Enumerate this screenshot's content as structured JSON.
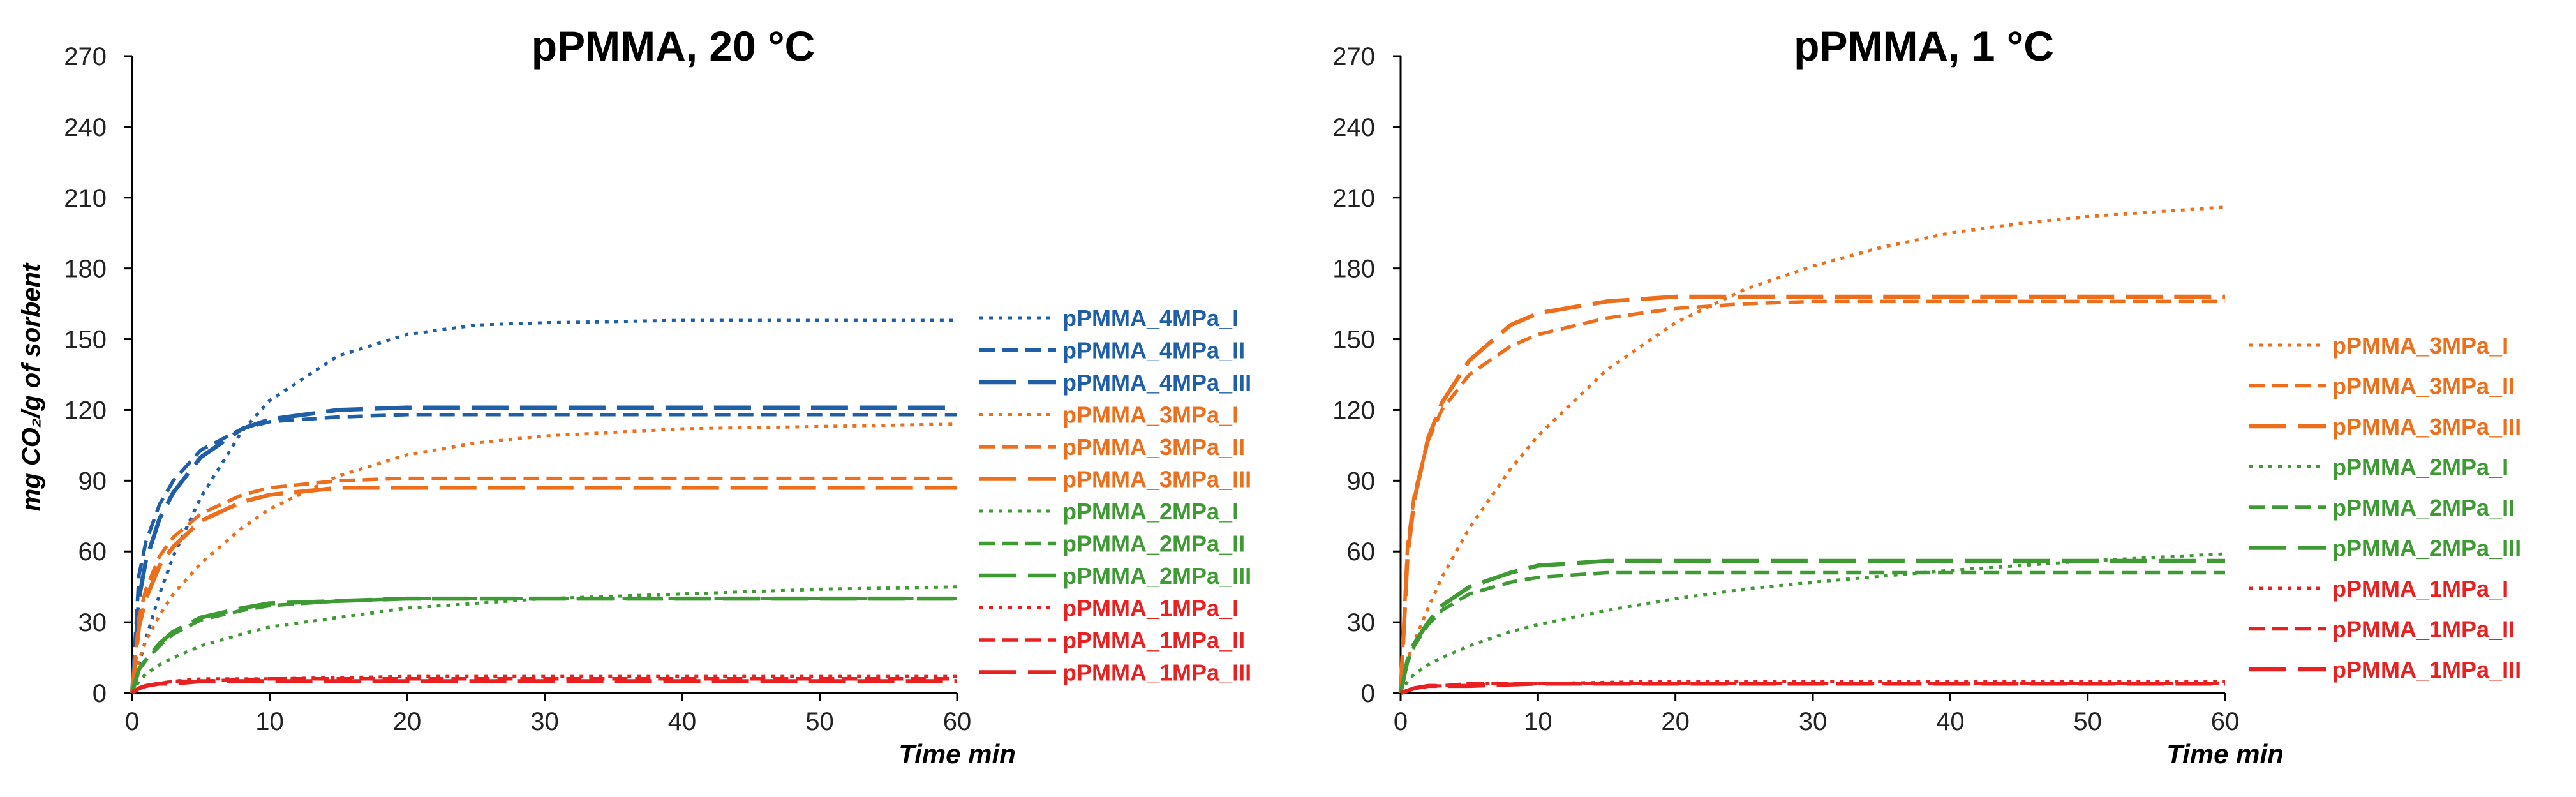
{
  "colors": {
    "4MPa": "#1f5fa8",
    "3MPa": "#ed6f1c",
    "2MPa": "#3e9a33",
    "1MPa": "#ea1f1f"
  },
  "chart_data": [
    {
      "type": "line",
      "title": "pPMMA, 20 °C",
      "xlabel": "Time min",
      "ylabel": "mg CO₂/g of sorbent",
      "xlim": [
        0,
        60
      ],
      "ylim": [
        0,
        270
      ],
      "xticks": [
        0,
        10,
        20,
        30,
        40,
        50,
        60
      ],
      "yticks": [
        0,
        30,
        60,
        90,
        120,
        150,
        180,
        210,
        240,
        270
      ],
      "grid": false,
      "legend_position": "right",
      "series": [
        {
          "name": "pPMMA_4MPa_I",
          "color_key": "4MPa",
          "dash": "dotted",
          "x": [
            0,
            0.5,
            1,
            2,
            3,
            5,
            8,
            10,
            15,
            20,
            25,
            30,
            40,
            50,
            60
          ],
          "y": [
            0,
            12,
            23,
            42,
            58,
            83,
            111,
            124,
            143,
            152,
            156,
            157,
            158,
            158,
            158
          ]
        },
        {
          "name": "pPMMA_4MPa_II",
          "color_key": "4MPa",
          "dash": "short-dash",
          "x": [
            0,
            0.5,
            1,
            2,
            3,
            5,
            8,
            10,
            15,
            20,
            30,
            40,
            50,
            60
          ],
          "y": [
            0,
            50,
            64,
            80,
            90,
            103,
            112,
            115,
            117,
            118,
            118,
            118,
            118,
            118
          ]
        },
        {
          "name": "pPMMA_4MPa_III",
          "color_key": "4MPa",
          "dash": "long-dash",
          "x": [
            0,
            0.5,
            1,
            2,
            3,
            5,
            8,
            10,
            15,
            20,
            30,
            40,
            50,
            60
          ],
          "y": [
            0,
            40,
            56,
            74,
            85,
            100,
            112,
            116,
            120,
            121,
            121,
            121,
            121,
            121
          ]
        },
        {
          "name": "pPMMA_3MPa_I",
          "color_key": "3MPa",
          "dash": "dotted",
          "x": [
            0,
            0.5,
            1,
            2,
            3,
            5,
            8,
            10,
            15,
            20,
            25,
            30,
            40,
            50,
            60
          ],
          "y": [
            0,
            14,
            22,
            33,
            42,
            55,
            70,
            78,
            92,
            101,
            106,
            109,
            112,
            113,
            114
          ]
        },
        {
          "name": "pPMMA_3MPa_II",
          "color_key": "3MPa",
          "dash": "short-dash",
          "x": [
            0,
            0.5,
            1,
            2,
            3,
            5,
            8,
            10,
            15,
            20,
            30,
            40,
            50,
            60
          ],
          "y": [
            0,
            32,
            44,
            58,
            66,
            76,
            84,
            87,
            90,
            91,
            91,
            91,
            91,
            91
          ]
        },
        {
          "name": "pPMMA_3MPa_III",
          "color_key": "3MPa",
          "dash": "long-dash",
          "x": [
            0,
            0.5,
            1,
            2,
            3,
            5,
            8,
            10,
            15,
            20,
            30,
            40,
            50,
            60
          ],
          "y": [
            0,
            28,
            40,
            54,
            62,
            73,
            81,
            84,
            87,
            87,
            87,
            87,
            87,
            87
          ]
        },
        {
          "name": "pPMMA_2MPa_I",
          "color_key": "2MPa",
          "dash": "dotted",
          "x": [
            0,
            0.5,
            1,
            2,
            3,
            5,
            8,
            10,
            15,
            20,
            30,
            40,
            50,
            60
          ],
          "y": [
            0,
            5,
            8,
            12,
            15,
            20,
            25,
            28,
            32,
            36,
            40,
            42,
            44,
            45
          ]
        },
        {
          "name": "pPMMA_2MPa_II",
          "color_key": "2MPa",
          "dash": "short-dash",
          "x": [
            0,
            0.5,
            1,
            2,
            3,
            5,
            8,
            10,
            15,
            20,
            30,
            40,
            50,
            60
          ],
          "y": [
            0,
            10,
            14,
            20,
            25,
            31,
            35,
            37,
            39,
            40,
            40,
            40,
            40,
            40
          ]
        },
        {
          "name": "pPMMA_2MPa_III",
          "color_key": "2MPa",
          "dash": "long-dash",
          "x": [
            0,
            0.5,
            1,
            2,
            3,
            5,
            8,
            10,
            15,
            20,
            30,
            40,
            50,
            60
          ],
          "y": [
            0,
            10,
            14,
            21,
            26,
            32,
            36,
            38,
            39,
            40,
            40,
            40,
            40,
            40
          ]
        },
        {
          "name": "pPMMA_1MPa_I",
          "color_key": "1MPa",
          "dash": "dotted",
          "x": [
            0,
            0.5,
            1,
            2,
            3,
            5,
            10,
            20,
            30,
            40,
            50,
            60
          ],
          "y": [
            0,
            2,
            3,
            4,
            5,
            6,
            6,
            7,
            7,
            7,
            7,
            7
          ]
        },
        {
          "name": "pPMMA_1MPa_II",
          "color_key": "1MPa",
          "dash": "short-dash",
          "x": [
            0,
            0.5,
            1,
            2,
            3,
            5,
            10,
            20,
            30,
            40,
            50,
            60
          ],
          "y": [
            0,
            2,
            3,
            4,
            5,
            5,
            6,
            6,
            6,
            6,
            6,
            6
          ]
        },
        {
          "name": "pPMMA_1MPa_III",
          "color_key": "1MPa",
          "dash": "long-dash",
          "x": [
            0,
            0.5,
            1,
            2,
            3,
            5,
            10,
            20,
            30,
            40,
            50,
            60
          ],
          "y": [
            0,
            2,
            3,
            4,
            4,
            5,
            5,
            5,
            5,
            5,
            5,
            5
          ]
        }
      ]
    },
    {
      "type": "line",
      "title": "pPMMA, 1 °C",
      "xlabel": "Time min",
      "ylabel": "",
      "xlim": [
        0,
        60
      ],
      "ylim": [
        0,
        270
      ],
      "xticks": [
        0,
        10,
        20,
        30,
        40,
        50,
        60
      ],
      "yticks": [
        0,
        30,
        60,
        90,
        120,
        150,
        180,
        210,
        240,
        270
      ],
      "grid": false,
      "legend_position": "right",
      "series": [
        {
          "name": "pPMMA_3MPa_I",
          "color_key": "3MPa",
          "dash": "dotted",
          "x": [
            0,
            0.5,
            1,
            2,
            3,
            5,
            8,
            10,
            15,
            20,
            25,
            30,
            35,
            40,
            45,
            50,
            55,
            60
          ],
          "y": [
            0,
            14,
            22,
            36,
            49,
            70,
            95,
            109,
            137,
            157,
            171,
            181,
            189,
            195,
            199,
            202,
            204,
            206
          ]
        },
        {
          "name": "pPMMA_3MPa_II",
          "color_key": "3MPa",
          "dash": "short-dash",
          "x": [
            0,
            0.5,
            1,
            2,
            3,
            5,
            8,
            10,
            15,
            20,
            25,
            30,
            40,
            50,
            60
          ],
          "y": [
            0,
            62,
            84,
            107,
            120,
            135,
            147,
            152,
            159,
            163,
            165,
            166,
            166,
            166,
            166
          ]
        },
        {
          "name": "pPMMA_3MPa_III",
          "color_key": "3MPa",
          "dash": "long-dash",
          "x": [
            0,
            0.5,
            1,
            2,
            3,
            5,
            8,
            10,
            15,
            20,
            25,
            30,
            40,
            50,
            60
          ],
          "y": [
            0,
            58,
            82,
            108,
            123,
            141,
            156,
            161,
            166,
            168,
            168,
            168,
            168,
            168,
            168
          ]
        },
        {
          "name": "pPMMA_2MPa_I",
          "color_key": "2MPa",
          "dash": "dotted",
          "x": [
            0,
            0.5,
            1,
            2,
            3,
            5,
            8,
            10,
            15,
            20,
            25,
            30,
            40,
            50,
            60
          ],
          "y": [
            0,
            5,
            8,
            12,
            15,
            20,
            26,
            29,
            35,
            40,
            44,
            47,
            52,
            56,
            59
          ]
        },
        {
          "name": "pPMMA_2MPa_II",
          "color_key": "2MPa",
          "dash": "short-dash",
          "x": [
            0,
            0.5,
            1,
            2,
            3,
            5,
            8,
            10,
            15,
            20,
            30,
            40,
            50,
            60
          ],
          "y": [
            0,
            13,
            20,
            29,
            35,
            42,
            47,
            49,
            51,
            51,
            51,
            51,
            51,
            51
          ]
        },
        {
          "name": "pPMMA_2MPa_III",
          "color_key": "2MPa",
          "dash": "long-dash",
          "x": [
            0,
            0.5,
            1,
            2,
            3,
            5,
            8,
            10,
            15,
            20,
            30,
            40,
            50,
            60
          ],
          "y": [
            0,
            14,
            21,
            30,
            37,
            45,
            51,
            54,
            56,
            56,
            56,
            56,
            56,
            56
          ]
        },
        {
          "name": "pPMMA_1MPa_I",
          "color_key": "1MPa",
          "dash": "dotted",
          "x": [
            0,
            0.5,
            1,
            2,
            3,
            5,
            10,
            20,
            30,
            40,
            50,
            60
          ],
          "y": [
            0,
            1,
            2,
            3,
            3,
            4,
            4,
            5,
            5,
            5,
            5,
            5
          ]
        },
        {
          "name": "pPMMA_1MPa_II",
          "color_key": "1MPa",
          "dash": "short-dash",
          "x": [
            0,
            0.5,
            1,
            2,
            3,
            5,
            10,
            20,
            30,
            40,
            50,
            60
          ],
          "y": [
            0,
            1,
            2,
            3,
            3,
            4,
            4,
            4,
            4,
            4,
            4,
            4
          ]
        },
        {
          "name": "pPMMA_1MPa_III",
          "color_key": "1MPa",
          "dash": "long-dash",
          "x": [
            0,
            0.5,
            1,
            2,
            3,
            5,
            10,
            20,
            30,
            40,
            50,
            60
          ],
          "y": [
            0,
            1,
            2,
            3,
            3,
            3,
            4,
            4,
            4,
            4,
            4,
            4
          ]
        }
      ]
    }
  ]
}
